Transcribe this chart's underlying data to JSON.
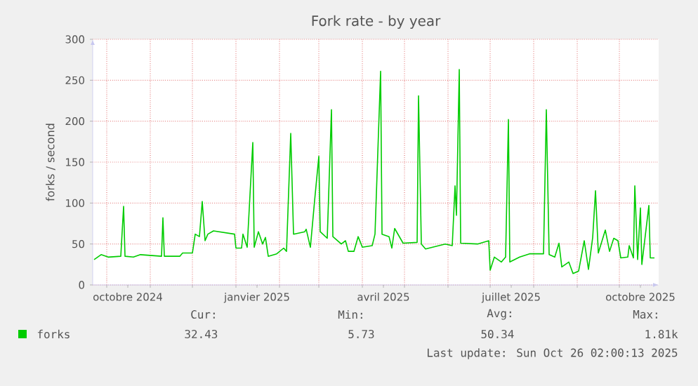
{
  "chart_data": {
    "type": "line",
    "title": "Fork rate - by year",
    "ylabel": "forks / second",
    "xlim": [
      "2024-09-21",
      "2025-10-29"
    ],
    "ylim": [
      0,
      300
    ],
    "yticks": [
      0,
      50,
      100,
      150,
      200,
      250,
      300
    ],
    "xticks": [
      {
        "value": "2024-10-01",
        "label": null
      },
      {
        "value": "2024-10-16",
        "label": "octobre 2024"
      },
      {
        "value": "2024-11-01",
        "label": null
      },
      {
        "value": "2024-12-01",
        "label": null
      },
      {
        "value": "2025-01-01",
        "label": null
      },
      {
        "value": "2025-01-16",
        "label": "janvier 2025"
      },
      {
        "value": "2025-02-01",
        "label": null
      },
      {
        "value": "2025-03-01",
        "label": null
      },
      {
        "value": "2025-04-01",
        "label": null
      },
      {
        "value": "2025-04-16",
        "label": "avril 2025"
      },
      {
        "value": "2025-05-01",
        "label": null
      },
      {
        "value": "2025-06-01",
        "label": null
      },
      {
        "value": "2025-07-01",
        "label": null
      },
      {
        "value": "2025-07-16",
        "label": "juillet 2025"
      },
      {
        "value": "2025-08-01",
        "label": null
      },
      {
        "value": "2025-09-01",
        "label": null
      },
      {
        "value": "2025-10-01",
        "label": null
      },
      {
        "value": "2025-10-16",
        "label": "octobre 2025"
      }
    ],
    "grid": true,
    "legend": "bottom",
    "marker": "none",
    "line_style": "solid",
    "x": [
      "2024-09-22",
      "2024-09-27",
      "2024-10-02",
      "2024-10-11",
      "2024-10-13",
      "2024-10-14",
      "2024-10-20",
      "2024-10-25",
      "2024-11-09",
      "2024-11-10",
      "2024-11-11",
      "2024-11-22",
      "2024-11-24",
      "2024-12-01",
      "2024-12-03",
      "2024-12-06",
      "2024-12-08",
      "2024-12-10",
      "2024-12-12",
      "2024-12-16",
      "2024-12-31",
      "2025-01-01",
      "2025-01-05",
      "2025-01-06",
      "2025-01-09",
      "2025-01-13",
      "2025-01-14",
      "2025-01-17",
      "2025-01-20",
      "2025-01-22",
      "2025-01-24",
      "2025-01-30",
      "2025-02-04",
      "2025-02-06",
      "2025-02-09",
      "2025-02-11",
      "2025-02-19",
      "2025-02-20",
      "2025-02-23",
      "2025-02-26",
      "2025-03-01",
      "2025-03-02",
      "2025-03-07",
      "2025-03-10",
      "2025-03-11",
      "2025-03-17",
      "2025-03-20",
      "2025-03-22",
      "2025-03-26",
      "2025-03-29",
      "2025-04-01",
      "2025-04-08",
      "2025-04-10",
      "2025-04-14",
      "2025-04-15",
      "2025-04-20",
      "2025-04-22",
      "2025-04-24",
      "2025-04-30",
      "2025-05-10",
      "2025-05-11",
      "2025-05-13",
      "2025-05-16",
      "2025-05-30",
      "2025-06-04",
      "2025-06-06",
      "2025-06-07",
      "2025-06-09",
      "2025-06-10",
      "2025-06-22",
      "2025-06-30",
      "2025-07-01",
      "2025-07-04",
      "2025-07-09",
      "2025-07-12",
      "2025-07-14",
      "2025-07-15",
      "2025-07-22",
      "2025-07-29",
      "2025-08-08",
      "2025-08-10",
      "2025-08-12",
      "2025-08-16",
      "2025-08-19",
      "2025-08-21",
      "2025-08-26",
      "2025-08-29",
      "2025-09-02",
      "2025-09-06",
      "2025-09-09",
      "2025-09-12",
      "2025-09-14",
      "2025-09-16",
      "2025-09-21",
      "2025-09-24",
      "2025-09-27",
      "2025-09-30",
      "2025-10-02",
      "2025-10-07",
      "2025-10-08",
      "2025-10-11",
      "2025-10-12",
      "2025-10-14",
      "2025-10-16",
      "2025-10-17",
      "2025-10-22",
      "2025-10-23",
      "2025-10-26"
    ],
    "series": [
      {
        "name": "forks",
        "color": "#00cc00",
        "values": [
          31,
          37,
          34,
          35,
          96,
          35,
          34,
          37,
          35,
          82,
          35,
          35,
          39,
          39,
          62,
          59,
          102,
          54,
          62,
          66,
          62,
          45,
          45,
          62,
          46,
          174,
          46,
          65,
          50,
          58,
          35,
          38,
          45,
          41,
          185,
          62,
          65,
          68,
          46,
          103,
          157,
          65,
          57,
          214,
          59,
          50,
          54,
          41,
          41,
          59,
          46,
          48,
          62,
          261,
          62,
          59,
          45,
          69,
          51,
          52,
          231,
          50,
          44,
          50,
          48,
          121,
          85,
          263,
          51,
          50,
          54,
          18,
          34,
          28,
          34,
          202,
          28,
          34,
          38,
          38,
          214,
          37,
          34,
          51,
          22,
          28,
          14,
          17,
          54,
          19,
          58,
          115,
          39,
          67,
          41,
          57,
          54,
          33,
          34,
          48,
          33,
          121,
          31,
          94,
          25,
          97,
          33,
          33
        ]
      }
    ],
    "annotations": [
      "Cur:",
      "32.43",
      "Min:",
      "5.73",
      "Avg:",
      "50.34",
      "Max:",
      "1.81k",
      "Last update: Sun Oct 26 02:00:13 2025"
    ]
  }
}
